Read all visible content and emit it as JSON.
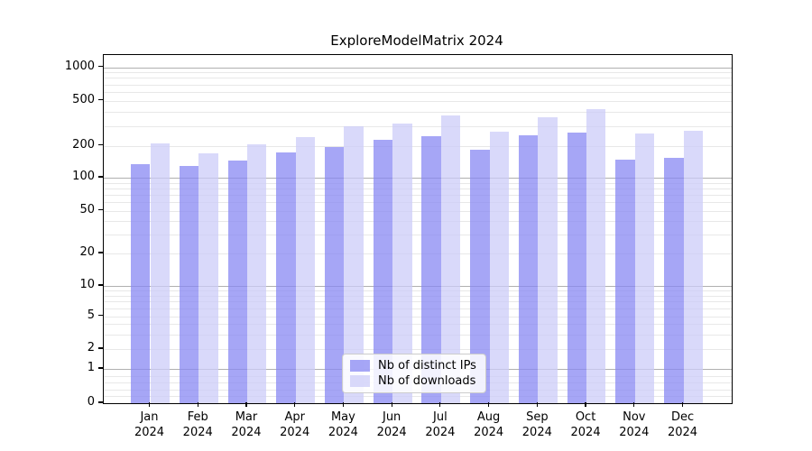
{
  "chart_data": {
    "type": "bar",
    "title": "ExploreModelMatrix 2024",
    "categories": [
      "Jan 2024",
      "Feb 2024",
      "Mar 2024",
      "Apr 2024",
      "May 2024",
      "Jun 2024",
      "Jul 2024",
      "Aug 2024",
      "Sep 2024",
      "Oct 2024",
      "Nov 2024",
      "Dec 2024"
    ],
    "x_tick_labels": [
      {
        "month": "Jan",
        "year": "2024"
      },
      {
        "month": "Feb",
        "year": "2024"
      },
      {
        "month": "Mar",
        "year": "2024"
      },
      {
        "month": "Apr",
        "year": "2024"
      },
      {
        "month": "May",
        "year": "2024"
      },
      {
        "month": "Jun",
        "year": "2024"
      },
      {
        "month": "Jul",
        "year": "2024"
      },
      {
        "month": "Aug",
        "year": "2024"
      },
      {
        "month": "Sep",
        "year": "2024"
      },
      {
        "month": "Oct",
        "year": "2024"
      },
      {
        "month": "Nov",
        "year": "2024"
      },
      {
        "month": "Dec",
        "year": "2024"
      }
    ],
    "series": [
      {
        "name": "Nb of distinct IPs",
        "color": "#8888f3",
        "values": [
          135,
          130,
          146,
          175,
          195,
          228,
          245,
          185,
          248,
          263,
          148,
          153
        ]
      },
      {
        "name": "Nb of downloads",
        "color": "#ccccf8",
        "values": [
          210,
          170,
          205,
          240,
          295,
          315,
          370,
          265,
          355,
          420,
          258,
          270
        ]
      }
    ],
    "bar_alpha": 0.75,
    "yscale": "symlog",
    "ylim": [
      0,
      1300
    ],
    "y_major_ticks": [
      0,
      1,
      2,
      5,
      10,
      20,
      50,
      100,
      200,
      500,
      1000
    ],
    "y_major_grid_values": [
      1,
      10,
      100,
      1000
    ],
    "y_minor_grid_values": [
      0.2,
      0.4,
      0.6,
      0.8,
      2,
      3,
      4,
      5,
      6,
      7,
      8,
      9,
      20,
      30,
      40,
      50,
      60,
      70,
      80,
      90,
      200,
      300,
      400,
      500,
      600,
      700,
      800,
      900
    ],
    "grid": true,
    "colors": {
      "major_grid": "#b0b0b0",
      "minor_grid": "#e8e8e8",
      "spine": "#000000",
      "background": "#ffffff"
    },
    "legend": {
      "position": "lower center",
      "entries": [
        "Nb of distinct IPs",
        "Nb of downloads"
      ]
    }
  }
}
